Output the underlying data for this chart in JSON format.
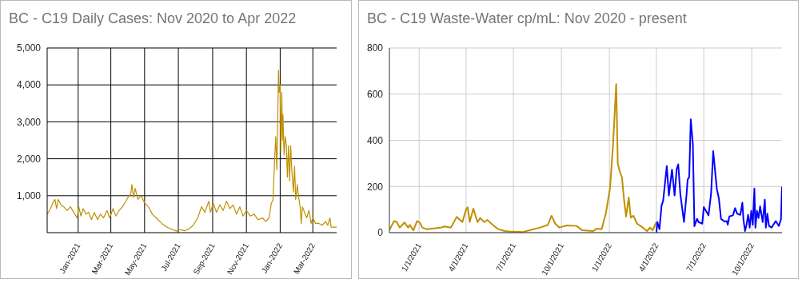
{
  "chart_data": [
    {
      "type": "line",
      "title": "BC - C19 Daily Cases: Nov 2020 to Apr 2022",
      "xlim": [
        "2020-11-06",
        "2022-04-13"
      ],
      "xticks": [
        {
          "value": "2021-01-01",
          "label": "Jan-2021"
        },
        {
          "value": "2021-03-01",
          "label": "Mar-2021"
        },
        {
          "value": "2021-05-01",
          "label": "May-2021"
        },
        {
          "value": "2021-07-01",
          "label": "Jul-2021"
        },
        {
          "value": "2021-09-01",
          "label": "Sep-2021"
        },
        {
          "value": "2021-11-01",
          "label": "Nov-2021"
        },
        {
          "value": "2022-01-01",
          "label": "Jan-2022"
        },
        {
          "value": "2022-03-01",
          "label": "Mar-2022"
        }
      ],
      "ylim": [
        0,
        5000
      ],
      "yticks": [
        {
          "value": 1000,
          "label": "1,000"
        },
        {
          "value": 2000,
          "label": "2,000"
        },
        {
          "value": 3000,
          "label": "3,000"
        },
        {
          "value": 4000,
          "label": "4,000"
        },
        {
          "value": 5000,
          "label": "5,000"
        }
      ],
      "grid": true,
      "marker": "none",
      "line_style": "solid",
      "series": [
        {
          "color": "#bf9000",
          "x": [
            "2020-11-06",
            "2020-11-12",
            "2020-11-16",
            "2020-11-20",
            "2020-11-23",
            "2020-11-26",
            "2020-12-01",
            "2020-12-06",
            "2020-12-12",
            "2020-12-18",
            "2020-12-24",
            "2020-12-30",
            "2021-01-02",
            "2021-01-06",
            "2021-01-10",
            "2021-01-15",
            "2021-01-20",
            "2021-01-25",
            "2021-01-30",
            "2021-02-05",
            "2021-02-10",
            "2021-02-16",
            "2021-02-22",
            "2021-02-27",
            "2021-03-05",
            "2021-03-10",
            "2021-03-16",
            "2021-03-22",
            "2021-03-28",
            "2021-04-03",
            "2021-04-06",
            "2021-04-08",
            "2021-04-11",
            "2021-04-14",
            "2021-04-19",
            "2021-04-25",
            "2021-05-01",
            "2021-05-08",
            "2021-05-15",
            "2021-05-22",
            "2021-06-01",
            "2021-06-10",
            "2021-06-20",
            "2021-06-28",
            "2021-07-05",
            "2021-07-12",
            "2021-07-20",
            "2021-07-28",
            "2021-08-05",
            "2021-08-12",
            "2021-08-18",
            "2021-08-25",
            "2021-08-28",
            "2021-09-02",
            "2021-09-08",
            "2021-09-14",
            "2021-09-20",
            "2021-09-26",
            "2021-10-02",
            "2021-10-08",
            "2021-10-14",
            "2021-10-20",
            "2021-10-26",
            "2021-11-01",
            "2021-11-08",
            "2021-11-15",
            "2021-11-22",
            "2021-11-30",
            "2021-12-06",
            "2021-12-12",
            "2021-12-16",
            "2021-12-19",
            "2021-12-22",
            "2021-12-24",
            "2021-12-26",
            "2021-12-27",
            "2021-12-29",
            "2021-12-30",
            "2022-01-01",
            "2022-01-02",
            "2022-01-04",
            "2022-01-05",
            "2022-01-06",
            "2022-01-08",
            "2022-01-10",
            "2022-01-12",
            "2022-01-14",
            "2022-01-16",
            "2022-01-18",
            "2022-01-20",
            "2022-01-22",
            "2022-01-25",
            "2022-01-27",
            "2022-01-29",
            "2022-02-01",
            "2022-02-03",
            "2022-02-06",
            "2022-02-08",
            "2022-02-10",
            "2022-02-14",
            "2022-02-18",
            "2022-02-22",
            "2022-02-26",
            "2022-03-01",
            "2022-03-06",
            "2022-03-12",
            "2022-03-18",
            "2022-03-24",
            "2022-03-28",
            "2022-04-01",
            "2022-04-03",
            "2022-04-13"
          ],
          "values": [
            500,
            650,
            800,
            900,
            650,
            900,
            750,
            700,
            600,
            700,
            550,
            400,
            700,
            450,
            650,
            500,
            550,
            350,
            550,
            350,
            500,
            400,
            600,
            400,
            650,
            450,
            600,
            700,
            850,
            1000,
            1050,
            1300,
            950,
            1200,
            900,
            1000,
            800,
            700,
            500,
            400,
            250,
            150,
            80,
            40,
            80,
            50,
            100,
            200,
            400,
            700,
            550,
            850,
            550,
            800,
            550,
            750,
            600,
            850,
            650,
            750,
            500,
            700,
            450,
            600,
            450,
            500,
            350,
            400,
            300,
            400,
            800,
            870,
            2000,
            2600,
            1700,
            2500,
            4400,
            3800,
            4000,
            2200,
            3800,
            2500,
            3200,
            2100,
            2600,
            2400,
            1500,
            2350,
            1400,
            2350,
            1700,
            1100,
            1800,
            900,
            1300,
            1000,
            700,
            250,
            700,
            550,
            400,
            600,
            250,
            400,
            250,
            250,
            200,
            300,
            200,
            400,
            150,
            150
          ]
        }
      ]
    },
    {
      "type": "line",
      "title": "BC - C19 Waste-Water cp/mL: Nov 2020 - present",
      "xlim": [
        "2020-11-05",
        "2022-11-28"
      ],
      "xticks": [
        {
          "value": "2021-01-01",
          "label": "1/1/2021"
        },
        {
          "value": "2021-04-01",
          "label": "4/1/2021"
        },
        {
          "value": "2021-07-01",
          "label": "7/1/2021"
        },
        {
          "value": "2021-10-01",
          "label": "10/1/2021"
        },
        {
          "value": "2022-01-01",
          "label": "1/1/2022"
        },
        {
          "value": "2022-04-01",
          "label": "4/1/2022"
        },
        {
          "value": "2022-07-01",
          "label": "7/1/2022"
        },
        {
          "value": "2022-10-01",
          "label": "10/1/2022"
        }
      ],
      "ylim": [
        0,
        800
      ],
      "yticks": [
        0,
        200,
        400,
        600,
        800
      ],
      "grid": true,
      "marker": "none",
      "line_style": "solid",
      "series": [
        {
          "color": "#bf9000",
          "x": [
            "2020-11-05",
            "2020-11-14",
            "2020-11-19",
            "2020-11-25",
            "2020-12-04",
            "2020-12-11",
            "2020-12-14",
            "2020-12-21",
            "2020-12-28",
            "2021-01-02",
            "2021-01-07",
            "2021-01-15",
            "2021-02-12",
            "2021-02-18",
            "2021-03-03",
            "2021-03-14",
            "2021-03-25",
            "2021-04-01",
            "2021-04-04",
            "2021-04-08",
            "2021-04-15",
            "2021-04-23",
            "2021-04-28",
            "2021-05-06",
            "2021-05-12",
            "2021-05-22",
            "2021-06-01",
            "2021-06-14",
            "2021-06-22",
            "2021-07-19",
            "2021-08-04",
            "2021-08-21",
            "2021-09-05",
            "2021-09-12",
            "2021-09-19",
            "2021-09-27",
            "2021-10-11",
            "2021-10-30",
            "2021-11-10",
            "2021-12-01",
            "2021-12-07",
            "2021-12-17",
            "2021-12-25",
            "2022-01-02",
            "2022-01-08",
            "2022-01-14",
            "2022-01-17",
            "2022-01-21",
            "2022-01-25",
            "2022-01-29",
            "2022-02-02",
            "2022-02-07",
            "2022-02-11",
            "2022-02-16",
            "2022-02-23",
            "2022-03-06",
            "2022-03-14",
            "2022-03-20",
            "2022-03-25",
            "2022-04-01"
          ],
          "values": [
            12,
            50,
            46,
            22,
            44,
            22,
            34,
            10,
            50,
            44,
            22,
            15,
            22,
            27,
            22,
            68,
            46,
            100,
            110,
            46,
            104,
            46,
            63,
            46,
            55,
            34,
            16,
            7,
            5,
            3,
            12,
            22,
            34,
            73,
            39,
            22,
            31,
            29,
            10,
            7,
            17,
            15,
            82,
            190,
            384,
            643,
            300,
            263,
            240,
            143,
            70,
            152,
            65,
            73,
            39,
            22,
            7,
            22,
            10,
            46
          ]
        },
        {
          "color": "#0000ff",
          "x": [
            "2022-04-01",
            "2022-04-03",
            "2022-04-07",
            "2022-04-11",
            "2022-04-14",
            "2022-04-21",
            "2022-04-25",
            "2022-05-01",
            "2022-05-06",
            "2022-05-10",
            "2022-05-13",
            "2022-05-17",
            "2022-05-24",
            "2022-05-29",
            "2022-05-31",
            "2022-06-03",
            "2022-06-06",
            "2022-06-10",
            "2022-06-13",
            "2022-06-18",
            "2022-06-21",
            "2022-06-28",
            "2022-07-01",
            "2022-07-10",
            "2022-07-15",
            "2022-07-19",
            "2022-07-26",
            "2022-07-30",
            "2022-08-03",
            "2022-08-10",
            "2022-08-14",
            "2022-08-16",
            "2022-08-19",
            "2022-08-26",
            "2022-08-30",
            "2022-09-03",
            "2022-09-09",
            "2022-09-13",
            "2022-09-15",
            "2022-09-18",
            "2022-09-21",
            "2022-09-24",
            "2022-09-27",
            "2022-09-30",
            "2022-10-03",
            "2022-10-06",
            "2022-10-08",
            "2022-10-11",
            "2022-10-14",
            "2022-10-17",
            "2022-10-22",
            "2022-10-26",
            "2022-10-28",
            "2022-10-31",
            "2022-11-03",
            "2022-11-08",
            "2022-11-16",
            "2022-11-22",
            "2022-11-26",
            "2022-11-28"
          ],
          "values": [
            0,
            46,
            15,
            118,
            137,
            288,
            161,
            273,
            161,
            276,
            296,
            167,
            46,
            167,
            230,
            240,
            491,
            384,
            28,
            60,
            46,
            39,
            111,
            75,
            169,
            353,
            189,
            147,
            60,
            48,
            50,
            34,
            70,
            75,
            106,
            82,
            77,
            130,
            58,
            7,
            34,
            77,
            22,
            94,
            34,
            191,
            22,
            94,
            63,
            114,
            46,
            143,
            22,
            82,
            29,
            22,
            50,
            29,
            58,
            199
          ]
        }
      ]
    }
  ]
}
